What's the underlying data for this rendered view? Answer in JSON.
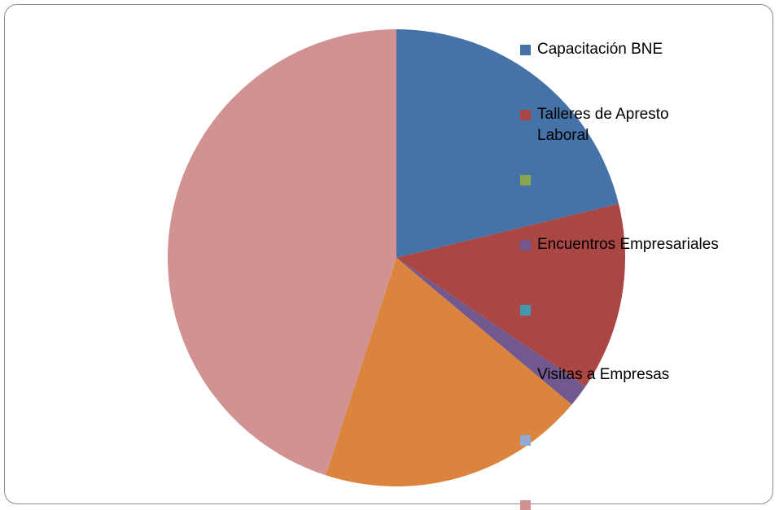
{
  "chart_data": {
    "type": "pie",
    "categories": [
      "Capacitación BNE",
      "Talleres de Apresto Laboral",
      null,
      "Encuentros Empresariales",
      null,
      "Visitas a Empresas",
      null,
      null
    ],
    "values": [
      21.2,
      13.3,
      0,
      1.6,
      0,
      18.9,
      0,
      45
    ],
    "colors": [
      "#4572a7",
      "#aa4643",
      "#89a54e",
      "#71588f",
      "#4198af",
      "#db843d",
      "#93a9cf",
      "#d19392"
    ]
  }
}
